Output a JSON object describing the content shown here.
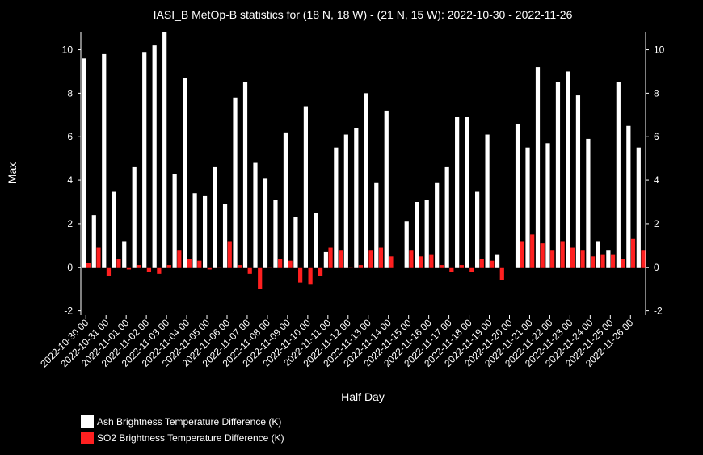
{
  "colors": {
    "background": "#000000",
    "foreground": "#ffffff",
    "ash": "#ffffff",
    "so2": "#ff2020"
  },
  "chart_data": {
    "type": "bar",
    "title": "IASI_B MetOp-B statistics for (18 N, 18 W) - (21 N, 15 W): 2022-10-30 - 2022-11-26",
    "xlabel": "Half Day",
    "ylabel": "Max",
    "ylim": [
      -2.2,
      10.8
    ],
    "yticks": [
      -2,
      0,
      2,
      4,
      6,
      8,
      10
    ],
    "ytick_labels": [
      "-2",
      "0",
      "2",
      "4",
      "6",
      "8",
      "10"
    ],
    "x_tick_labels": [
      "2022-10-30 00",
      "2022-10-31 00",
      "2022-11-01 00",
      "2022-11-02 00",
      "2022-11-03 00",
      "2022-11-04 00",
      "2022-11-05 00",
      "2022-11-06 00",
      "2022-11-07 00",
      "2022-11-08 00",
      "2022-11-09 00",
      "2022-11-10 00",
      "2022-11-11 00",
      "2022-11-12 00",
      "2022-11-13 00",
      "2022-11-14 00",
      "2022-11-15 00",
      "2022-11-16 00",
      "2022-11-17 00",
      "2022-11-18 00",
      "2022-11-19 00",
      "2022-11-20 00",
      "2022-11-21 00",
      "2022-11-22 00",
      "2022-11-23 00",
      "2022-11-24 00",
      "2022-11-25 00",
      "2022-11-26 00"
    ],
    "grid": false,
    "legend_position": "bottom-left",
    "series": [
      {
        "name": "Ash Brightness Temperature Difference (K)",
        "values": [
          9.6,
          2.4,
          9.8,
          3.5,
          1.2,
          4.6,
          9.9,
          10.2,
          10.8,
          4.3,
          8.7,
          3.4,
          3.3,
          4.6,
          2.9,
          7.8,
          8.5,
          4.8,
          4.1,
          3.1,
          6.2,
          2.3,
          7.4,
          2.5,
          0.7,
          5.5,
          6.1,
          6.4,
          8.0,
          3.9,
          7.2,
          null,
          2.1,
          3.0,
          3.1,
          3.9,
          4.6,
          6.9,
          6.9,
          3.5,
          6.1,
          0.6,
          null,
          6.6,
          5.5,
          9.2,
          5.7,
          8.5,
          9.0,
          7.9,
          5.9,
          1.2,
          0.8,
          8.5,
          6.5,
          5.5
        ]
      },
      {
        "name": "SO2 Brightness Temperature Difference (K)",
        "values": [
          0.2,
          0.9,
          -0.4,
          0.4,
          -0.1,
          0.1,
          -0.2,
          -0.3,
          0.1,
          0.8,
          0.4,
          0.3,
          -0.1,
          0.0,
          1.2,
          0.1,
          -0.3,
          -1.0,
          0.0,
          0.4,
          0.3,
          -0.7,
          -0.8,
          -0.4,
          0.9,
          0.8,
          0.0,
          0.1,
          0.8,
          0.9,
          0.5,
          null,
          0.8,
          0.5,
          0.6,
          0.1,
          -0.2,
          0.1,
          -0.2,
          0.4,
          0.3,
          -0.6,
          null,
          1.2,
          1.5,
          1.1,
          0.8,
          1.2,
          0.9,
          0.8,
          0.5,
          0.6,
          0.6,
          0.4,
          1.3,
          0.8
        ]
      }
    ]
  }
}
